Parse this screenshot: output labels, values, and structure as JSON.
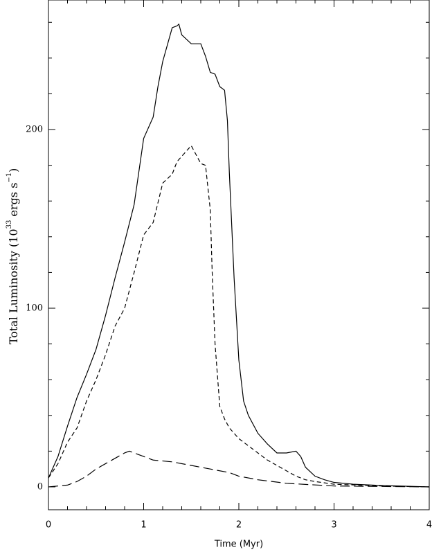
{
  "chart_data": {
    "type": "line",
    "xlabel": "Time (Myr)",
    "ylabel_parts": [
      "Total Luminosity (10",
      "33",
      " ergs s",
      "−1",
      ")"
    ],
    "xlim": [
      0,
      4
    ],
    "ylim": [
      -12.8,
      272.5
    ],
    "xticks": [
      0,
      1,
      2,
      3,
      4
    ],
    "yticks": [
      0,
      100,
      200
    ],
    "xminor": [
      0.2,
      0.4,
      0.6,
      0.8,
      1.2,
      1.4,
      1.6,
      1.8,
      2.2,
      2.4,
      2.6,
      2.8,
      3.2,
      3.4,
      3.6,
      3.8
    ],
    "yminor": [
      20,
      40,
      60,
      80,
      120,
      140,
      160,
      180,
      220,
      240,
      260
    ],
    "series": [
      {
        "color": "#000000",
        "dash": "solid",
        "x": [
          0,
          0.1,
          0.2,
          0.3,
          0.4,
          0.5,
          0.6,
          0.7,
          0.8,
          0.9,
          1.0,
          1.1,
          1.15,
          1.2,
          1.3,
          1.35,
          1.37,
          1.4,
          1.5,
          1.6,
          1.65,
          1.7,
          1.75,
          1.8,
          1.85,
          1.88,
          1.9,
          1.95,
          2.0,
          2.05,
          2.1,
          2.2,
          2.3,
          2.4,
          2.5,
          2.6,
          2.65,
          2.7,
          2.8,
          2.9,
          3.0,
          3.2,
          3.5,
          4.0
        ],
        "values": [
          5,
          17,
          34,
          50,
          63,
          77,
          96,
          117,
          137,
          158,
          195,
          207,
          224,
          238,
          257,
          258,
          259,
          253,
          248,
          248,
          241,
          232,
          231,
          224,
          222,
          205,
          176,
          117,
          71,
          48,
          40,
          30,
          24,
          19,
          19,
          20,
          17,
          11,
          6,
          4,
          2.5,
          1.5,
          0.8,
          0
        ]
      },
      {
        "color": "#000000",
        "dash": "dashed",
        "x": [
          0,
          0.1,
          0.2,
          0.3,
          0.4,
          0.5,
          0.6,
          0.7,
          0.8,
          0.9,
          1.0,
          1.1,
          1.2,
          1.3,
          1.35,
          1.4,
          1.5,
          1.6,
          1.65,
          1.7,
          1.72,
          1.75,
          1.8,
          1.85,
          1.9,
          2.0,
          2.1,
          2.2,
          2.3,
          2.4,
          2.5,
          2.6,
          2.7,
          2.8,
          3.0,
          3.5,
          4.0
        ],
        "values": [
          5,
          13,
          25,
          33,
          48,
          60,
          74,
          90,
          100,
          120,
          141,
          148,
          170,
          175,
          182,
          185,
          191,
          181,
          180,
          155,
          120,
          80,
          45,
          38,
          33,
          27,
          23,
          19,
          15,
          12,
          9,
          6,
          4,
          3,
          1.5,
          0.5,
          0
        ]
      },
      {
        "color": "#000000",
        "dash": "longdash",
        "x": [
          0,
          0.2,
          0.3,
          0.4,
          0.5,
          0.6,
          0.7,
          0.8,
          0.85,
          0.9,
          1.0,
          1.1,
          1.2,
          1.3,
          1.5,
          1.7,
          1.9,
          2.0,
          2.2,
          2.5,
          3.0,
          4.0
        ],
        "values": [
          0,
          1,
          3,
          6,
          10,
          13,
          16,
          19,
          20,
          19,
          17,
          15,
          14.5,
          14,
          12,
          10,
          8,
          6,
          4,
          2,
          0.5,
          0
        ]
      }
    ]
  }
}
